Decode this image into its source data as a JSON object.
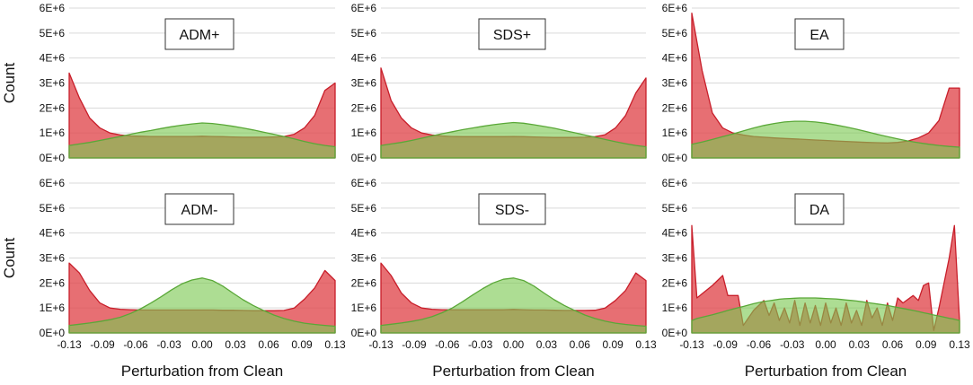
{
  "figure": {
    "y_tick_labels": [
      "0E+0",
      "1E+6",
      "2E+6",
      "3E+6",
      "4E+6",
      "5E+6",
      "6E+6"
    ],
    "x_tick_labels": [
      "-0.13",
      "-0.09",
      "-0.06",
      "-0.03",
      "0.00",
      "0.03",
      "0.06",
      "0.09",
      "0.13"
    ],
    "colors": {
      "red": "#e0474c",
      "green": "#7bc850"
    }
  },
  "chart_data": [
    {
      "type": "area",
      "title": "ADM+",
      "xlabel": "",
      "ylabel": "Count",
      "xlim": [
        -0.13,
        0.13
      ],
      "ylim": [
        0,
        6000000
      ],
      "grid": true,
      "x": [
        -0.13,
        -0.12,
        -0.11,
        -0.1,
        -0.09,
        -0.08,
        -0.07,
        -0.06,
        -0.05,
        -0.04,
        -0.03,
        -0.02,
        -0.01,
        0,
        0.01,
        0.02,
        0.03,
        0.04,
        0.05,
        0.06,
        0.07,
        0.08,
        0.09,
        0.1,
        0.11,
        0.12,
        0.13
      ],
      "series": [
        {
          "name": "red",
          "color": "#e0474c",
          "values": [
            3400000,
            2400000,
            1600000,
            1200000,
            1000000,
            920000,
            880000,
            870000,
            860000,
            860000,
            860000,
            860000,
            860000,
            870000,
            860000,
            850000,
            840000,
            830000,
            830000,
            830000,
            840000,
            860000,
            950000,
            1200000,
            1700000,
            2700000,
            3000000
          ]
        },
        {
          "name": "green",
          "color": "#7bc850",
          "values": [
            500000,
            560000,
            620000,
            700000,
            780000,
            860000,
            950000,
            1030000,
            1100000,
            1180000,
            1250000,
            1310000,
            1360000,
            1400000,
            1380000,
            1330000,
            1270000,
            1200000,
            1120000,
            1030000,
            950000,
            860000,
            760000,
            660000,
            570000,
            500000,
            450000
          ]
        }
      ]
    },
    {
      "type": "area",
      "title": "SDS+",
      "xlabel": "",
      "ylabel": "",
      "xlim": [
        -0.13,
        0.13
      ],
      "ylim": [
        0,
        6000000
      ],
      "grid": true,
      "x": [
        -0.13,
        -0.12,
        -0.11,
        -0.1,
        -0.09,
        -0.08,
        -0.07,
        -0.06,
        -0.05,
        -0.04,
        -0.03,
        -0.02,
        -0.01,
        0,
        0.01,
        0.02,
        0.03,
        0.04,
        0.05,
        0.06,
        0.07,
        0.08,
        0.09,
        0.1,
        0.11,
        0.12,
        0.13
      ],
      "series": [
        {
          "name": "red",
          "color": "#e0474c",
          "values": [
            3600000,
            2300000,
            1600000,
            1200000,
            1000000,
            920000,
            880000,
            860000,
            850000,
            850000,
            850000,
            850000,
            850000,
            860000,
            850000,
            840000,
            830000,
            820000,
            820000,
            820000,
            830000,
            850000,
            930000,
            1200000,
            1700000,
            2600000,
            3200000
          ]
        },
        {
          "name": "green",
          "color": "#7bc850",
          "values": [
            500000,
            560000,
            620000,
            700000,
            790000,
            880000,
            970000,
            1050000,
            1130000,
            1200000,
            1270000,
            1330000,
            1380000,
            1420000,
            1390000,
            1330000,
            1260000,
            1190000,
            1100000,
            1010000,
            920000,
            830000,
            740000,
            650000,
            570000,
            500000,
            450000
          ]
        }
      ]
    },
    {
      "type": "area",
      "title": "EA",
      "xlabel": "",
      "ylabel": "",
      "xlim": [
        -0.13,
        0.13
      ],
      "ylim": [
        0,
        6000000
      ],
      "grid": true,
      "x": [
        -0.13,
        -0.12,
        -0.11,
        -0.1,
        -0.09,
        -0.08,
        -0.07,
        -0.06,
        -0.05,
        -0.04,
        -0.03,
        -0.02,
        -0.01,
        0,
        0.01,
        0.02,
        0.03,
        0.04,
        0.05,
        0.06,
        0.07,
        0.08,
        0.09,
        0.1,
        0.11,
        0.12,
        0.13
      ],
      "series": [
        {
          "name": "red",
          "color": "#e0474c",
          "values": [
            5800000,
            3500000,
            1800000,
            1200000,
            1000000,
            920000,
            860000,
            830000,
            800000,
            780000,
            760000,
            740000,
            720000,
            700000,
            680000,
            660000,
            640000,
            620000,
            610000,
            600000,
            620000,
            680000,
            800000,
            1000000,
            1500000,
            2800000,
            2800000
          ]
        },
        {
          "name": "green",
          "color": "#7bc850",
          "values": [
            550000,
            640000,
            740000,
            850000,
            960000,
            1080000,
            1200000,
            1300000,
            1380000,
            1440000,
            1470000,
            1470000,
            1440000,
            1390000,
            1320000,
            1240000,
            1150000,
            1050000,
            950000,
            850000,
            760000,
            680000,
            610000,
            550000,
            500000,
            460000,
            430000
          ]
        }
      ]
    },
    {
      "type": "area",
      "title": "ADM-",
      "xlabel": "Perturbation from Clean",
      "ylabel": "Count",
      "xlim": [
        -0.13,
        0.13
      ],
      "ylim": [
        0,
        6000000
      ],
      "grid": true,
      "x": [
        -0.13,
        -0.12,
        -0.11,
        -0.1,
        -0.09,
        -0.08,
        -0.07,
        -0.06,
        -0.05,
        -0.04,
        -0.03,
        -0.02,
        -0.01,
        0,
        0.01,
        0.02,
        0.03,
        0.04,
        0.05,
        0.06,
        0.07,
        0.08,
        0.09,
        0.1,
        0.11,
        0.12,
        0.13
      ],
      "series": [
        {
          "name": "red",
          "color": "#e0474c",
          "values": [
            2800000,
            2400000,
            1700000,
            1200000,
            1000000,
            950000,
            930000,
            920000,
            920000,
            920000,
            920000,
            920000,
            920000,
            920000,
            920000,
            910000,
            910000,
            900000,
            890000,
            890000,
            890000,
            900000,
            1000000,
            1350000,
            1800000,
            2500000,
            2100000
          ]
        },
        {
          "name": "green",
          "color": "#7bc850",
          "values": [
            300000,
            350000,
            400000,
            460000,
            530000,
            630000,
            780000,
            970000,
            1200000,
            1450000,
            1720000,
            1960000,
            2120000,
            2200000,
            2100000,
            1880000,
            1600000,
            1330000,
            1100000,
            900000,
            720000,
            580000,
            470000,
            390000,
            340000,
            300000,
            270000
          ]
        }
      ]
    },
    {
      "type": "area",
      "title": "SDS-",
      "xlabel": "Perturbation from Clean",
      "ylabel": "",
      "xlim": [
        -0.13,
        0.13
      ],
      "ylim": [
        0,
        6000000
      ],
      "grid": true,
      "x": [
        -0.13,
        -0.12,
        -0.11,
        -0.1,
        -0.09,
        -0.08,
        -0.07,
        -0.06,
        -0.05,
        -0.04,
        -0.03,
        -0.02,
        -0.01,
        0,
        0.01,
        0.02,
        0.03,
        0.04,
        0.05,
        0.06,
        0.07,
        0.08,
        0.09,
        0.1,
        0.11,
        0.12,
        0.13
      ],
      "series": [
        {
          "name": "red",
          "color": "#e0474c",
          "values": [
            2800000,
            2300000,
            1600000,
            1200000,
            1000000,
            950000,
            930000,
            930000,
            930000,
            930000,
            930000,
            930000,
            930000,
            940000,
            930000,
            920000,
            920000,
            910000,
            900000,
            900000,
            900000,
            910000,
            1000000,
            1300000,
            1700000,
            2400000,
            2100000
          ]
        },
        {
          "name": "green",
          "color": "#7bc850",
          "values": [
            300000,
            350000,
            400000,
            460000,
            540000,
            650000,
            810000,
            1000000,
            1250000,
            1520000,
            1780000,
            2000000,
            2150000,
            2200000,
            2100000,
            1880000,
            1600000,
            1330000,
            1100000,
            900000,
            720000,
            580000,
            470000,
            390000,
            340000,
            300000,
            270000
          ]
        }
      ]
    },
    {
      "type": "area",
      "title": "DA",
      "xlabel": "Perturbation from Clean",
      "ylabel": "",
      "xlim": [
        -0.13,
        0.13
      ],
      "ylim": [
        0,
        6000000
      ],
      "grid": true,
      "x": [
        -0.13,
        -0.125,
        -0.11,
        -0.1,
        -0.095,
        -0.085,
        -0.08,
        -0.07,
        -0.06,
        -0.055,
        -0.05,
        -0.045,
        -0.04,
        -0.035,
        -0.03,
        -0.025,
        -0.02,
        -0.015,
        -0.01,
        -0.005,
        0,
        0.005,
        0.01,
        0.015,
        0.02,
        0.025,
        0.03,
        0.035,
        0.04,
        0.045,
        0.05,
        0.055,
        0.06,
        0.065,
        0.07,
        0.075,
        0.085,
        0.09,
        0.095,
        0.1,
        0.105,
        0.11,
        0.12,
        0.125,
        0.13
      ],
      "series": [
        {
          "name": "red",
          "color": "#e0474c",
          "values": [
            4300000,
            1400000,
            1900000,
            2300000,
            1500000,
            1500000,
            300000,
            900000,
            1300000,
            700000,
            1200000,
            500000,
            1000000,
            400000,
            1300000,
            300000,
            1200000,
            400000,
            1100000,
            300000,
            1200000,
            400000,
            1000000,
            300000,
            1200000,
            400000,
            900000,
            300000,
            1300000,
            600000,
            1000000,
            300000,
            1200000,
            500000,
            1400000,
            1200000,
            1500000,
            1300000,
            1900000,
            2000000,
            100000,
            1000000,
            3000000,
            4300000,
            500000
          ]
        },
        {
          "name": "green",
          "color": "#7bc850",
          "values": [
            500000,
            580000,
            730000,
            840000,
            900000,
            1010000,
            1060000,
            1170000,
            1260000,
            1290000,
            1320000,
            1350000,
            1370000,
            1380000,
            1390000,
            1400000,
            1400000,
            1400000,
            1400000,
            1390000,
            1380000,
            1370000,
            1360000,
            1340000,
            1320000,
            1300000,
            1280000,
            1250000,
            1220000,
            1190000,
            1160000,
            1130000,
            1100000,
            1060000,
            1020000,
            980000,
            900000,
            860000,
            810000,
            770000,
            720000,
            680000,
            590000,
            550000,
            500000
          ]
        }
      ]
    }
  ]
}
